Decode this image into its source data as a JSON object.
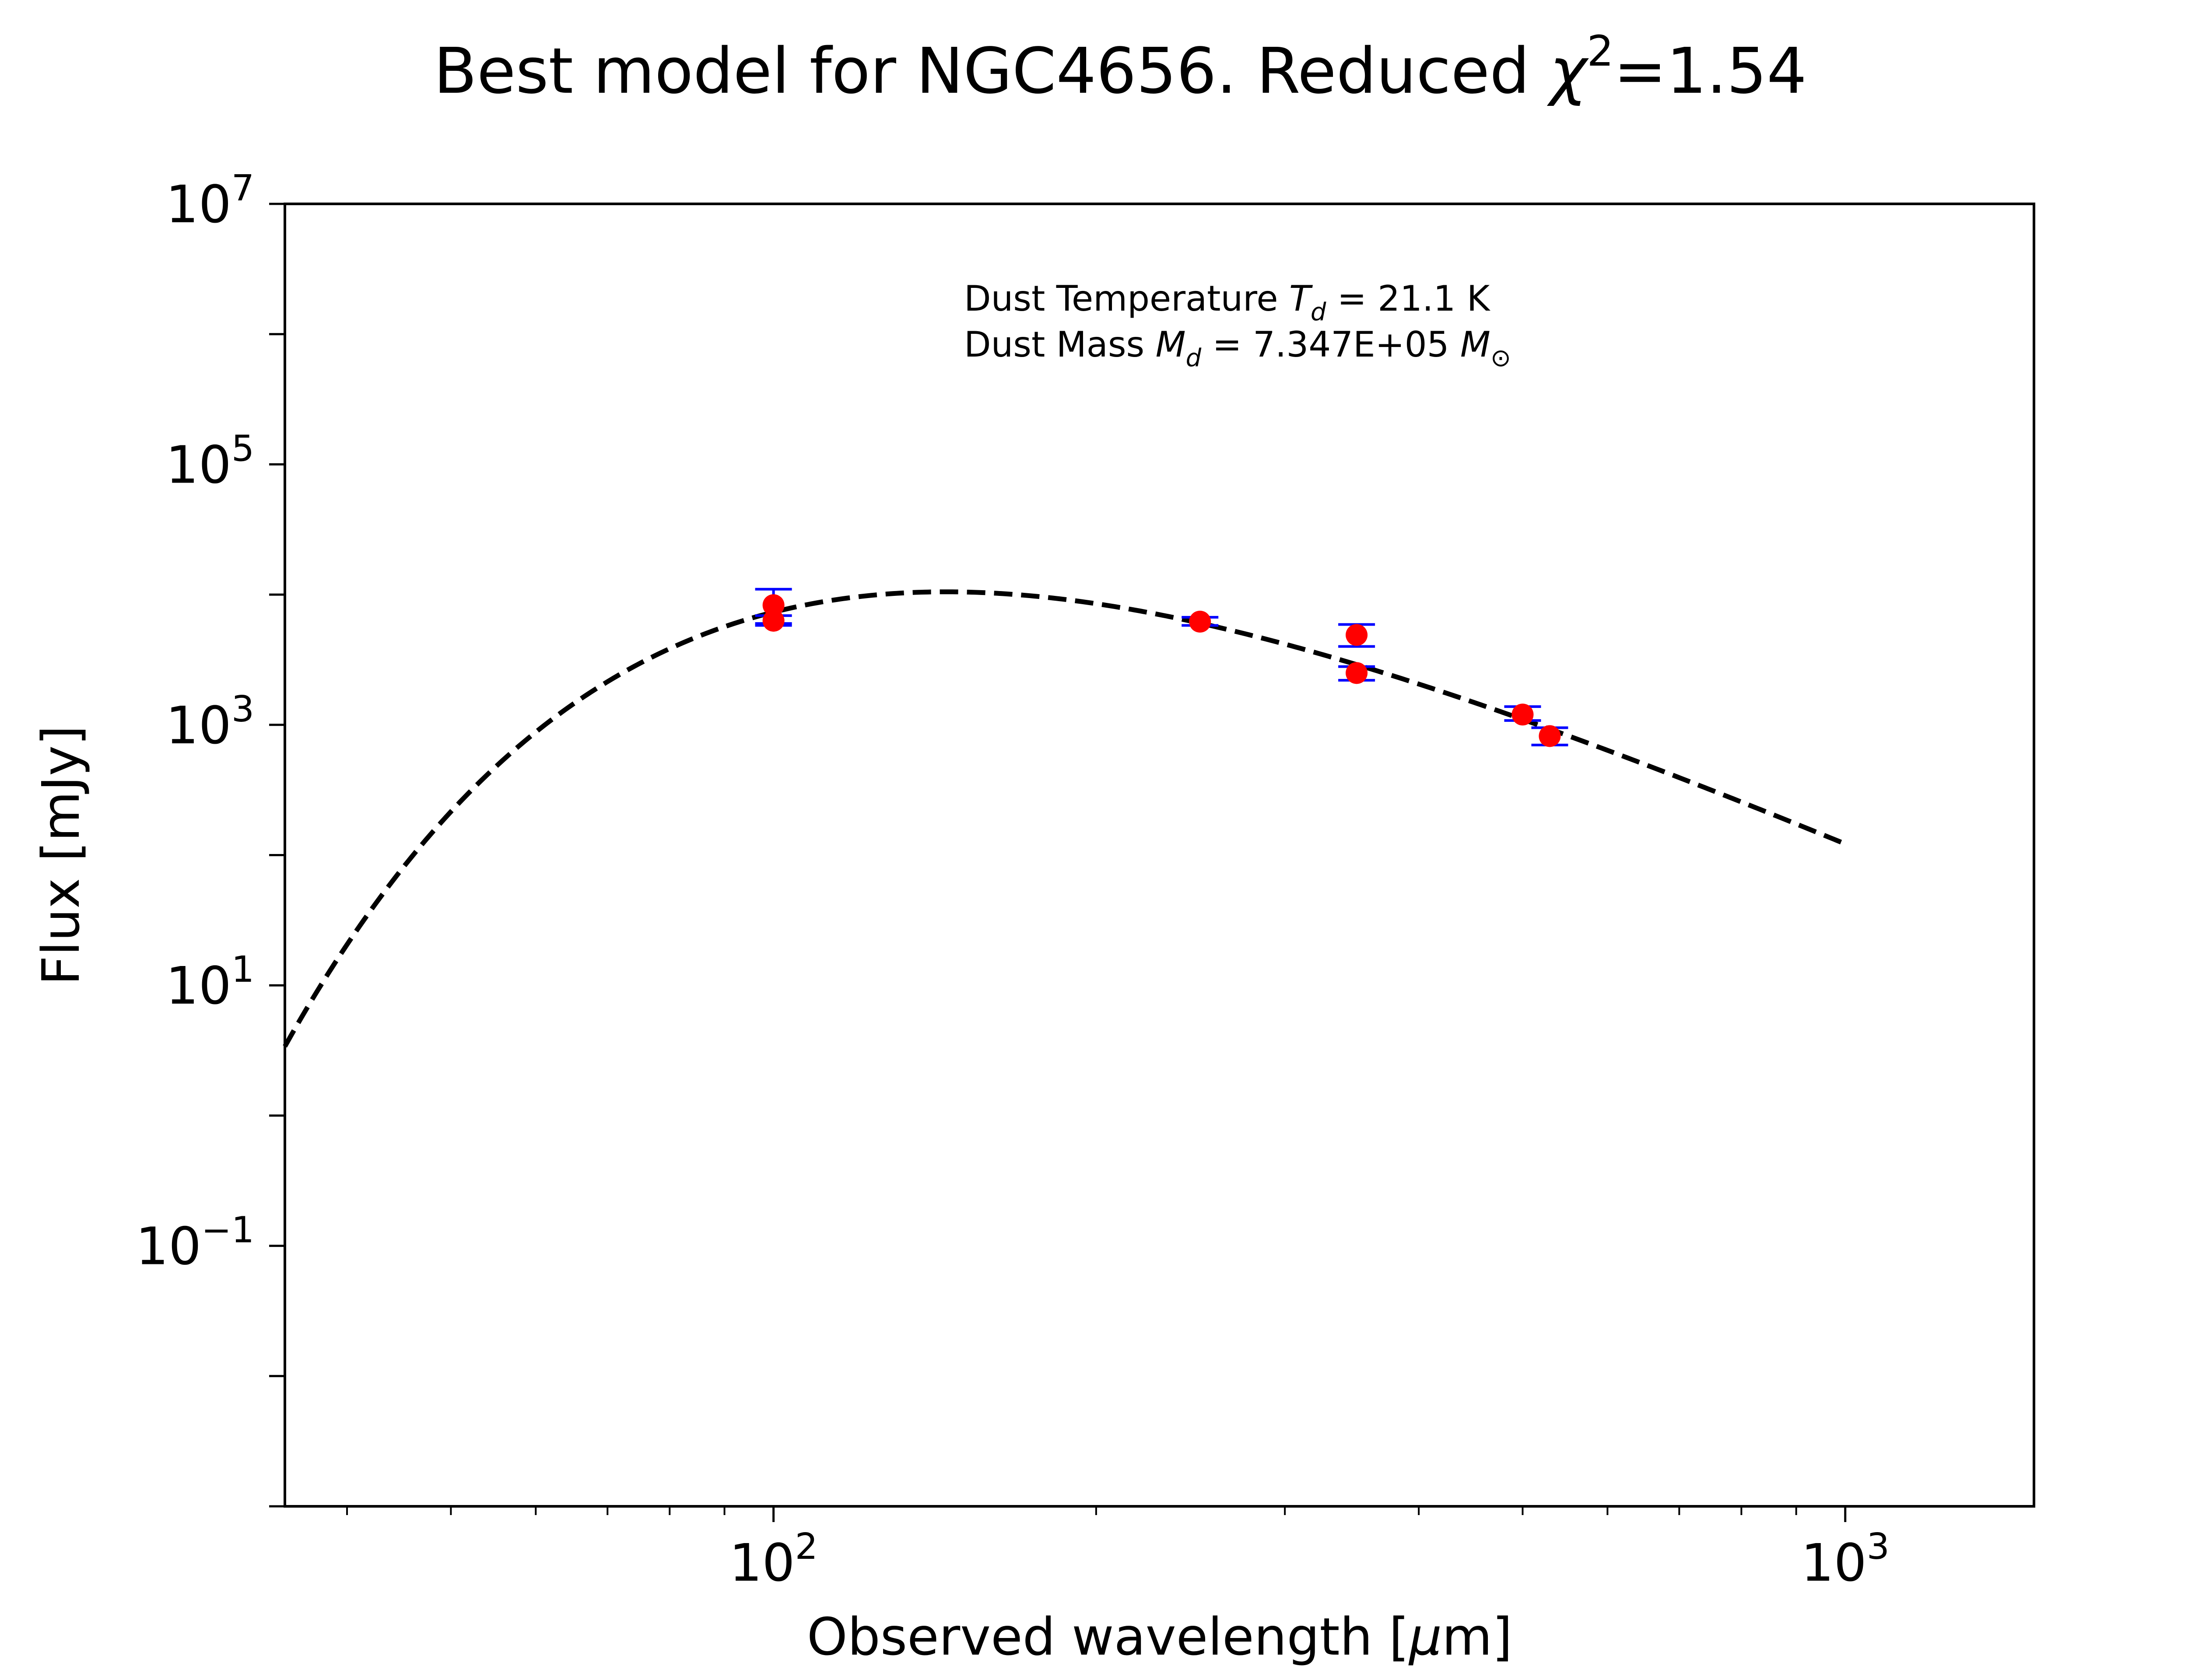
{
  "chart_data": {
    "type": "scatter",
    "title": {
      "text": "Best model for NGC4656. Reduced ",
      "symbol": "χ",
      "power": "2",
      "value": "=1.54"
    },
    "xlabel": {
      "text": "Observed wavelength [",
      "symbol": "μ",
      "unit": "m]"
    },
    "ylabel": "Flux [mJy]",
    "x_scale": "log",
    "y_scale": "log",
    "xlim": [
      35,
      1500
    ],
    "ylim": [
      0.001,
      10000000
    ],
    "x_ticks": [
      {
        "value": 100,
        "base": "10",
        "exp": "2"
      },
      {
        "value": 1000,
        "base": "10",
        "exp": "3"
      }
    ],
    "y_ticks": [
      {
        "value": 0.1,
        "base": "10",
        "exp": "−1"
      },
      {
        "value": 10,
        "base": "10",
        "exp": "1"
      },
      {
        "value": 1000,
        "base": "10",
        "exp": "3"
      },
      {
        "value": 100000,
        "base": "10",
        "exp": "5"
      },
      {
        "value": 10000000,
        "base": "10",
        "exp": "7"
      }
    ],
    "grid": false,
    "annotation": {
      "line1": {
        "prefix": "Dust Temperature ",
        "var": "T",
        "sub": "d",
        "suffix": " = 21.1 K"
      },
      "line2": {
        "prefix": "Dust Mass ",
        "var": "M",
        "sub": "d",
        "suffix": " = 7.347E+05 ",
        "unit": "M",
        "unit_sub": "⊙"
      }
    },
    "model_curve": {
      "style": "dashed",
      "color": "#000000",
      "x_range": [
        35,
        1000
      ],
      "temperature_K": 21.1,
      "beta": 1.75,
      "peak_x": 147,
      "peak_y": 10500
    },
    "observations": {
      "marker_color": "#ff0000",
      "errorbar_color": "#0000ff",
      "points": [
        {
          "x": 100,
          "y": 8300,
          "yerr_low": 6000,
          "yerr_high": 11000
        },
        {
          "x": 100,
          "y": 6300,
          "yerr_low": 5800,
          "yerr_high": 6900
        },
        {
          "x": 250,
          "y": 6200,
          "yerr_low": 5800,
          "yerr_high": 6700
        },
        {
          "x": 350,
          "y": 4900,
          "yerr_low": 4000,
          "yerr_high": 5900
        },
        {
          "x": 350,
          "y": 2500,
          "yerr_low": 2200,
          "yerr_high": 2800
        },
        {
          "x": 500,
          "y": 1200,
          "yerr_low": 1080,
          "yerr_high": 1380
        },
        {
          "x": 530,
          "y": 820,
          "yerr_low": 700,
          "yerr_high": 950
        }
      ]
    }
  }
}
